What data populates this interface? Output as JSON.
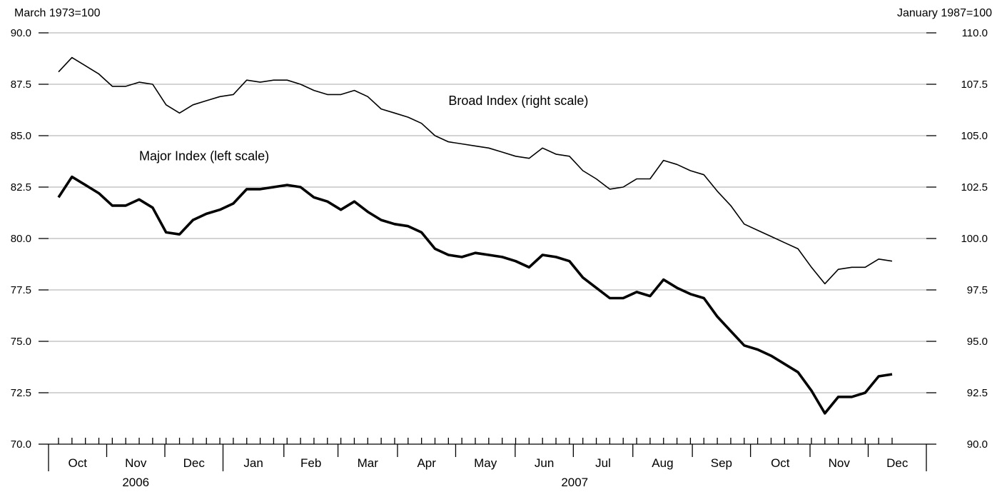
{
  "chart_data": {
    "type": "line",
    "title": "",
    "left_axis": {
      "unit": "March 1973=100",
      "ylim": [
        70,
        90
      ],
      "ticks": [
        "70.0",
        "72.5",
        "75.0",
        "77.5",
        "80.0",
        "82.5",
        "85.0",
        "87.5",
        "90.0"
      ]
    },
    "right_axis": {
      "unit": "January 1987=100",
      "ylim": [
        90,
        110
      ],
      "ticks": [
        "90.0",
        "92.5",
        "95.0",
        "97.5",
        "100.0",
        "102.5",
        "105.0",
        "107.5",
        "110.0"
      ]
    },
    "grid": true,
    "x_axis": {
      "unit": "weeks",
      "start_label_index": 0,
      "months": [
        "Oct",
        "Nov",
        "Dec",
        "Jan",
        "Feb",
        "Mar",
        "Apr",
        "May",
        "Jun",
        "Jul",
        "Aug",
        "Sep",
        "Oct",
        "Nov",
        "Dec"
      ],
      "month_lengths_weeks": [
        4.3,
        4.3,
        4.3,
        4.5,
        4.0,
        4.4,
        4.3,
        4.4,
        4.3,
        4.4,
        4.4,
        4.3,
        4.4,
        4.3,
        4.3
      ],
      "years": [
        {
          "label": "2006",
          "span": [
            0,
            3
          ]
        },
        {
          "label": "2007",
          "span": [
            3,
            15
          ]
        }
      ]
    },
    "series": [
      {
        "name": "Broad Index (right scale)",
        "axis": "right",
        "label_position": {
          "x_week": 29,
          "y": 106.5
        },
        "values": [
          108.1,
          108.8,
          108.4,
          108.0,
          107.4,
          107.4,
          107.6,
          107.5,
          106.5,
          106.1,
          106.5,
          106.7,
          106.9,
          107.0,
          107.7,
          107.6,
          107.7,
          107.7,
          107.5,
          107.2,
          107.0,
          107.0,
          107.2,
          106.9,
          106.3,
          106.1,
          105.9,
          105.6,
          105.0,
          104.7,
          104.6,
          104.5,
          104.4,
          104.2,
          104.0,
          103.9,
          104.4,
          104.1,
          104.0,
          103.3,
          102.9,
          102.4,
          102.5,
          102.9,
          102.9,
          103.8,
          103.6,
          103.3,
          103.1,
          102.3,
          101.6,
          100.7,
          100.4,
          100.1,
          99.8,
          99.5,
          98.6,
          97.8,
          98.5,
          98.6,
          98.6,
          99.0,
          98.9
        ]
      },
      {
        "name": "Major Index (left scale)",
        "axis": "left",
        "label_position": {
          "x_week": 6,
          "y": 83.8
        },
        "values": [
          82.0,
          83.0,
          82.6,
          82.2,
          81.6,
          81.6,
          81.9,
          81.5,
          80.3,
          80.2,
          80.9,
          81.2,
          81.4,
          81.7,
          82.4,
          82.4,
          82.5,
          82.6,
          82.5,
          82.0,
          81.8,
          81.4,
          81.8,
          81.3,
          80.9,
          80.7,
          80.6,
          80.3,
          79.5,
          79.2,
          79.1,
          79.3,
          79.2,
          79.1,
          78.9,
          78.6,
          79.2,
          79.1,
          78.9,
          78.1,
          77.6,
          77.1,
          77.1,
          77.4,
          77.2,
          78.0,
          77.6,
          77.3,
          77.1,
          76.2,
          75.5,
          74.8,
          74.6,
          74.3,
          73.9,
          73.5,
          72.6,
          71.5,
          72.3,
          72.3,
          72.5,
          73.3,
          73.4
        ]
      }
    ]
  }
}
